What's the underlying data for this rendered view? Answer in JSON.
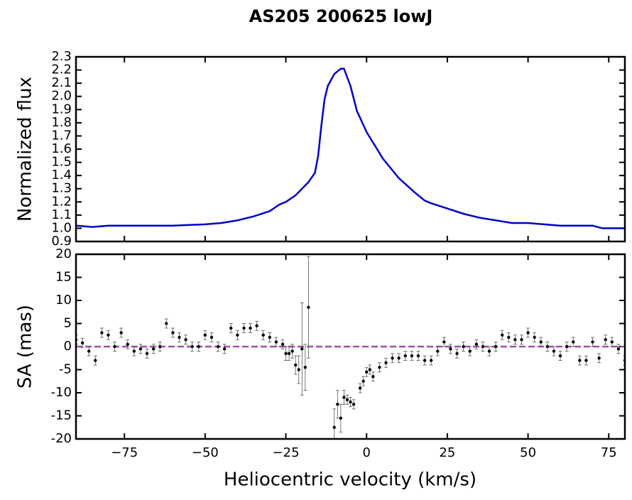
{
  "chart_data": [
    {
      "type": "line",
      "title": "AS205 200625 lowJ",
      "ylabel": "Normalized flux",
      "color": "#0000c8",
      "x": [
        -90,
        -85,
        -80,
        -70,
        -60,
        -50,
        -45,
        -40,
        -35,
        -30,
        -27,
        -25,
        -22,
        -20,
        -18,
        -16,
        -15,
        -14,
        -13,
        -12,
        -10,
        -8,
        -7,
        -5,
        -3,
        0,
        3,
        5,
        10,
        15,
        18,
        20,
        25,
        30,
        35,
        40,
        45,
        50,
        55,
        60,
        65,
        70,
        73,
        80
      ],
      "values": [
        1.02,
        1.01,
        1.02,
        1.02,
        1.02,
        1.03,
        1.04,
        1.06,
        1.09,
        1.13,
        1.18,
        1.2,
        1.25,
        1.3,
        1.35,
        1.42,
        1.55,
        1.78,
        1.98,
        2.08,
        2.17,
        2.21,
        2.21,
        2.08,
        1.89,
        1.73,
        1.61,
        1.53,
        1.38,
        1.27,
        1.21,
        1.19,
        1.15,
        1.11,
        1.08,
        1.06,
        1.04,
        1.04,
        1.03,
        1.02,
        1.02,
        1.02,
        1.0,
        1.0
      ],
      "xlim": [
        -90,
        80
      ],
      "xticks": [
        -75,
        -50,
        -25,
        0,
        25,
        50,
        75
      ],
      "ylim": [
        0.9,
        2.3
      ],
      "yticks": [
        0.9,
        {
          "value": 1,
          "label": "1.0"
        },
        1.1,
        1.2,
        1.3,
        1.4,
        1.5,
        1.6,
        1.7,
        1.8,
        1.9,
        {
          "value": 2,
          "label": "2.0"
        },
        2.1,
        2.2,
        2.3
      ]
    },
    {
      "type": "errorbar",
      "ylabel": "SA (mas)",
      "xlabel": "Heliocentric velocity (km/s)",
      "color": "#000000",
      "reference_line": {
        "value": 0,
        "color": "#a050a8"
      },
      "x": [
        -90,
        -88,
        -86,
        -84,
        -82,
        -80,
        -78,
        -76,
        -74,
        -72,
        -70,
        -68,
        -66,
        -64,
        -62,
        -60,
        -58,
        -56,
        -54,
        -52,
        -50,
        -48,
        -46,
        -44,
        -42,
        -40,
        -38,
        -36,
        -34,
        -32,
        -30,
        -28,
        -26,
        -25,
        -24,
        -23,
        -22,
        -21,
        -20,
        -19,
        -18,
        -10,
        -9,
        -8,
        -7,
        -6,
        -5,
        -4,
        -2,
        -1,
        0,
        1,
        2,
        4,
        6,
        8,
        10,
        12,
        14,
        16,
        18,
        20,
        22,
        24,
        26,
        28,
        30,
        32,
        34,
        36,
        38,
        40,
        42,
        44,
        46,
        48,
        50,
        52,
        54,
        56,
        58,
        60,
        62,
        64,
        66,
        68,
        70,
        72,
        74,
        76,
        78,
        80
      ],
      "values": [
        1.5,
        0.8,
        -1,
        -3,
        3,
        2.5,
        0,
        3,
        0.5,
        -1,
        -0.5,
        -1.5,
        -0.5,
        0,
        5,
        3,
        2,
        1.5,
        0,
        0,
        2.5,
        2,
        0,
        -0.5,
        4,
        2.5,
        4,
        4,
        4.5,
        2.5,
        2,
        1,
        0.5,
        -1.5,
        -1.5,
        -1,
        -4,
        -5,
        -0.5,
        -4.5,
        8.5,
        -17.5,
        -12.5,
        -15.5,
        -11,
        -11.5,
        -12,
        -12.5,
        -9,
        -7.5,
        -5.5,
        -5,
        -6.5,
        -4.5,
        -3.5,
        -2.5,
        -2.5,
        -2,
        -2,
        -2,
        -3,
        -3,
        -1,
        1,
        -0.5,
        -1.5,
        0,
        -1,
        0.5,
        0,
        -1,
        0,
        2.5,
        2,
        1.5,
        1.5,
        3,
        2,
        1,
        0,
        -1,
        -2,
        0,
        1,
        -3,
        -3,
        1,
        -2.5,
        1.5,
        1,
        -0.5,
        -3
      ],
      "errors": [
        1,
        1,
        1,
        1,
        1,
        1,
        1,
        1,
        1,
        1,
        1,
        1,
        1,
        1,
        1,
        1,
        1,
        1,
        1,
        1,
        1,
        1,
        1,
        1,
        1,
        1,
        1,
        1,
        1,
        1,
        1,
        1,
        1,
        1.5,
        1.5,
        1.5,
        2,
        3,
        10,
        5,
        11,
        4,
        3,
        3,
        1.5,
        1,
        1,
        1,
        1,
        1,
        1,
        1,
        1,
        1,
        1,
        1,
        1,
        1,
        1,
        1,
        1,
        1,
        1,
        1,
        1,
        1,
        1,
        1,
        1,
        1,
        1,
        1,
        1,
        1,
        1,
        1,
        1,
        1,
        1,
        1,
        1,
        1,
        1,
        1,
        1,
        1,
        1,
        1,
        1,
        1,
        1,
        1
      ],
      "xlim": [
        -90,
        80
      ],
      "xticks": [
        {
          "value": -75,
          "label": "−75"
        },
        {
          "value": -50,
          "label": "−50"
        },
        {
          "value": -25,
          "label": "−25"
        },
        0,
        25,
        50,
        75
      ],
      "ylim": [
        -20,
        20
      ],
      "yticks": [
        -20,
        -15,
        -10,
        -5,
        0,
        5,
        10,
        15,
        20
      ]
    }
  ]
}
